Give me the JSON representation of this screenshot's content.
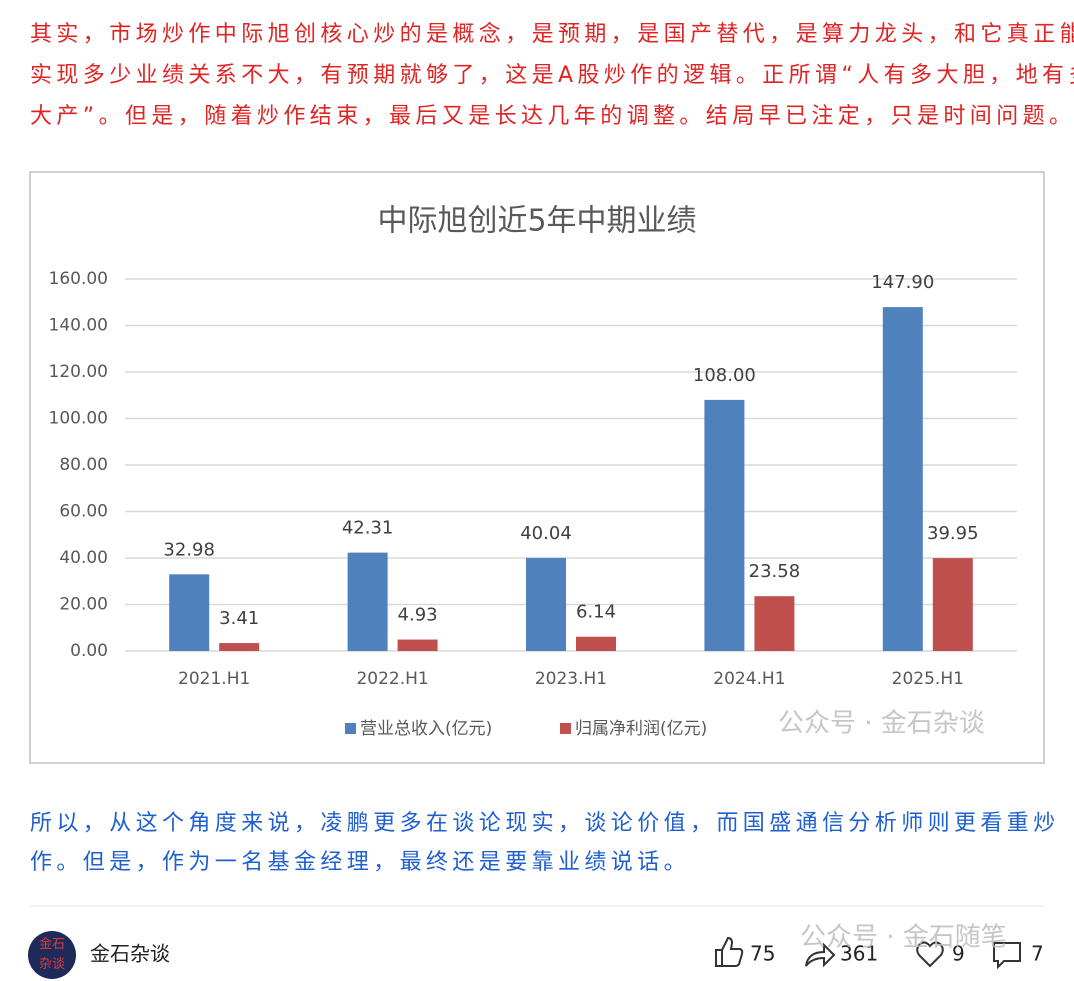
{
  "article": {
    "paragraph_1": [
      "其实，市场炒作中际旭创核心炒的是概念，是预期，是国产替代，是算力龙头，和它真正能",
      "实现多少业绩关系不大，有预期就够了，这是A股炒作的逻辑。正所谓“人有多大胆，地有多",
      "大产”。但是，随着炒作结束，最后又是长达几年的调整。结局早已注定，只是时间问题。"
    ],
    "paragraph_2": [
      "所以，从这个角度来说，凌鹏更多在谈论现实，谈论价值，而国盛通信分析师则更看重炒",
      "作。但是，作为一名基金经理，最终还是要靠业绩说话。"
    ],
    "watermarks": [
      "公众号 · 金石杂谈",
      "公众号 · 金石随笔"
    ]
  },
  "chart_data": {
    "type": "bar",
    "title": "中际旭创近5年中期业绩",
    "categories": [
      "2021.H1",
      "2022.H1",
      "2023.H1",
      "2024.H1",
      "2025.H1"
    ],
    "series": [
      {
        "name": "营业总收入(亿元)",
        "color": "#4f81bd",
        "values": [
          32.98,
          42.31,
          40.04,
          108,
          147.9
        ],
        "value_labels": [
          "32.98",
          "42.31",
          "40.04",
          "108.00",
          "147.90"
        ]
      },
      {
        "name": "归属净利润(亿元)",
        "color": "#c0504d",
        "values": [
          3.41,
          4.93,
          6.14,
          23.58,
          39.95
        ],
        "value_labels": [
          "3.41",
          "4.93",
          "6.14",
          "23.58",
          "39.95"
        ]
      }
    ],
    "ylim": [
      0,
      160
    ],
    "yticks": [
      {
        "value": 0,
        "label": "0.00"
      },
      {
        "value": 20,
        "label": "20.00"
      },
      {
        "value": 40,
        "label": "40.00"
      },
      {
        "value": 60,
        "label": "60.00"
      },
      {
        "value": 80,
        "label": "80.00"
      },
      {
        "value": 100,
        "label": "100.00"
      },
      {
        "value": 120,
        "label": "120.00"
      },
      {
        "value": 140,
        "label": "140.00"
      },
      {
        "value": 160,
        "label": "160.00"
      }
    ],
    "grid": true,
    "legend": "bottom"
  },
  "footer": {
    "author": "金石杂谈",
    "avatar_text": [
      "金石",
      "杂谈"
    ],
    "likes": 75,
    "shares": 361,
    "favorites": 9,
    "comments": 7
  }
}
